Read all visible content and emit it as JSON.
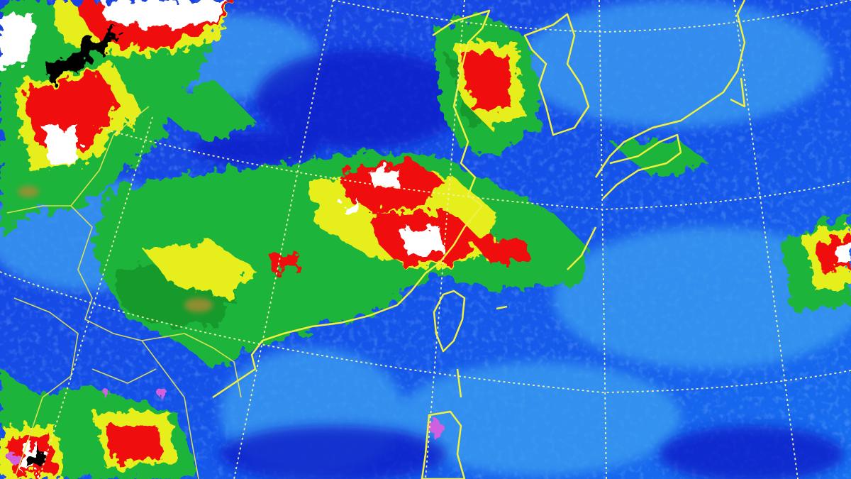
{
  "image": {
    "kind": "enhanced infrared satellite cloud image",
    "colors": {
      "clear_sky_deep": "#0a1fd0",
      "clear_sky": "#1a5cf0",
      "low_cloud": "#3aa0f0",
      "mid_cloud": "#1fb83a",
      "mid_high_cloud": "#e8f020",
      "high_cloud": "#f01010",
      "very_high_cloud": "#ffffff",
      "coldest_top": "#000000",
      "extreme_top": "#d060e0",
      "coastline": "#f0f040",
      "graticule": "#f0f0a0"
    }
  }
}
